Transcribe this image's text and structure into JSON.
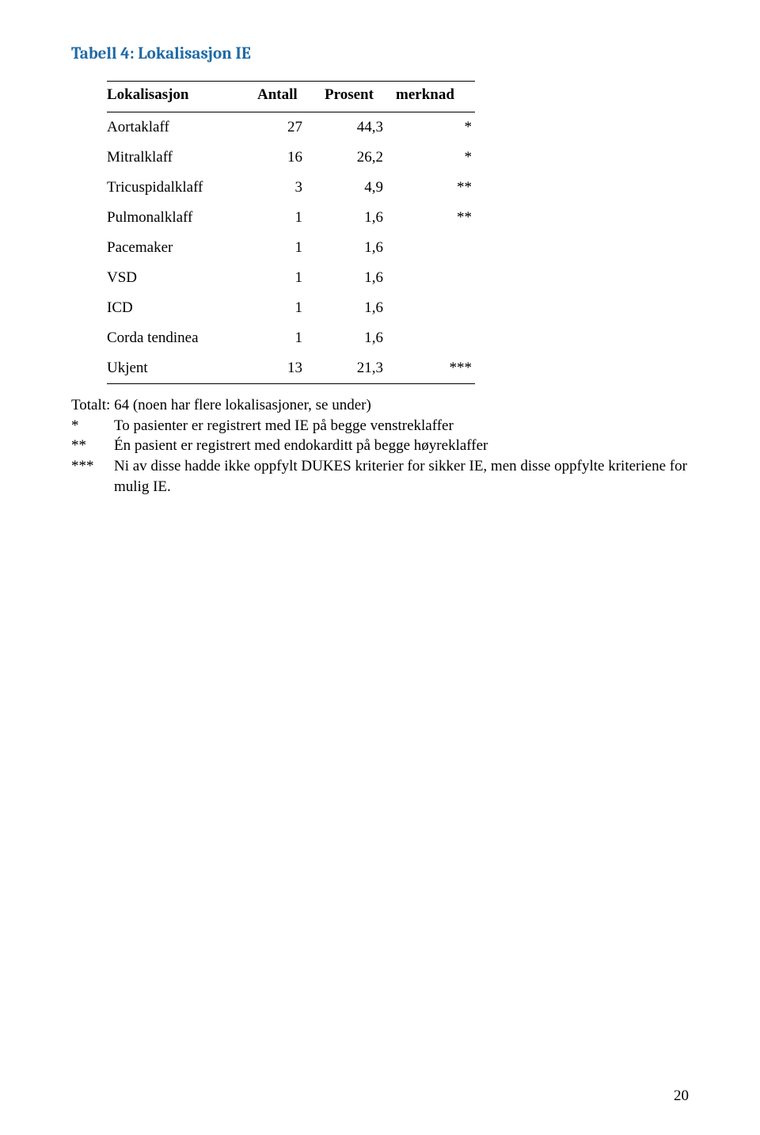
{
  "title": {
    "text": "Tabell 4: Lokalisasjon IE",
    "color": "#1f6aa5",
    "fontsize_pt": 15
  },
  "table": {
    "type": "table",
    "columns": [
      "Lokalisasjon",
      "Antall",
      "Prosent",
      "merknad"
    ],
    "rows": [
      [
        "Aortaklaff",
        "27",
        "44,3",
        "*"
      ],
      [
        "Mitralklaff",
        "16",
        "26,2",
        "*"
      ],
      [
        "Tricuspidalklaff",
        "3",
        "4,9",
        "**"
      ],
      [
        "Pulmonalklaff",
        "1",
        "1,6",
        "**"
      ],
      [
        "Pacemaker",
        "1",
        "1,6",
        ""
      ],
      [
        "VSD",
        "1",
        "1,6",
        ""
      ],
      [
        "ICD",
        "1",
        "1,6",
        ""
      ],
      [
        "Corda tendinea",
        "1",
        "1,6",
        ""
      ],
      [
        "Ukjent",
        "13",
        "21,3",
        "***"
      ]
    ],
    "body_fontsize_pt": 14,
    "border_color": "#000000",
    "background_color": "#ffffff"
  },
  "notes": {
    "totalt": "Totalt: 64 (noen har flere lokalisasjoner, se under)",
    "items": [
      {
        "marker": "*",
        "text": "To pasienter er registrert med IE på begge venstreklaffer"
      },
      {
        "marker": "**",
        "text": "Én pasient er registrert med endokarditt på begge høyreklaffer"
      },
      {
        "marker": "***",
        "text": "Ni av disse hadde ikke oppfylt DUKES kriterier for sikker IE, men disse oppfylte kriteriene for mulig IE."
      }
    ],
    "fontsize_pt": 14
  },
  "page_number": "20"
}
